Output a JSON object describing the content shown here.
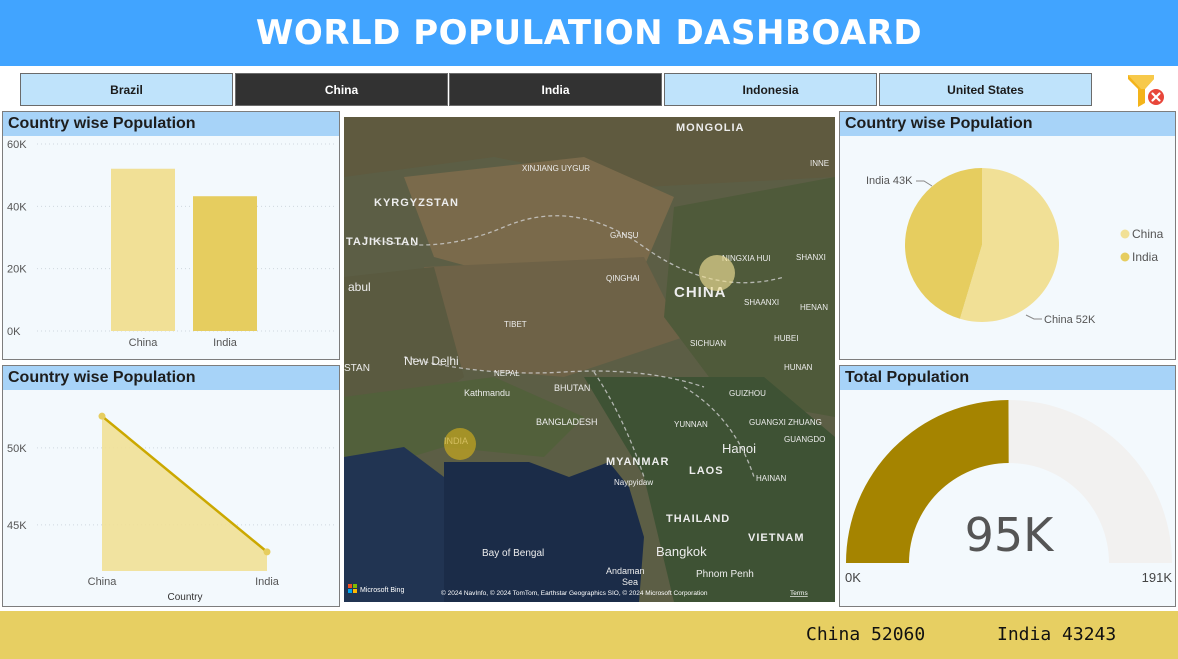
{
  "header": {
    "title": "WORLD POPULATION DASHBOARD"
  },
  "slicers": [
    {
      "label": "Brazil",
      "selected": false
    },
    {
      "label": "China",
      "selected": true
    },
    {
      "label": "India",
      "selected": true
    },
    {
      "label": "Indonesia",
      "selected": false
    },
    {
      "label": "United States",
      "selected": false
    }
  ],
  "filter_icon": {
    "icon": "clear-filter-icon"
  },
  "colors": {
    "header": "#41a4ff",
    "china": "#f1e096",
    "india": "#e6cd5f",
    "line": "#cba800",
    "gauge_fill": "#a58400",
    "gauge_track": "#f2f1f0",
    "footer": "#e7cf62"
  },
  "bar_panel": {
    "title": "Country wise Population"
  },
  "line_panel": {
    "title": "Country wise Population"
  },
  "pie_panel": {
    "title": "Country wise Population"
  },
  "gauge_panel": {
    "title": "Total Population"
  },
  "chart_data": [
    {
      "type": "bar",
      "title": "Country wise Population",
      "categories": [
        "China",
        "India"
      ],
      "values": [
        52060,
        43243
      ],
      "yticks": [
        "0K",
        "20K",
        "40K",
        "60K"
      ],
      "ylim": [
        0,
        60000
      ],
      "grid": true
    },
    {
      "type": "area",
      "title": "Country wise Population",
      "categories": [
        "China",
        "India"
      ],
      "values": [
        52060,
        43243
      ],
      "xlabel": "Country",
      "yticks": [
        "45K",
        "50K"
      ],
      "ylim": [
        42000,
        53500
      ],
      "grid": true
    },
    {
      "type": "pie",
      "title": "Country wise Population",
      "labels": [
        "China",
        "India"
      ],
      "values": [
        52060,
        43243
      ],
      "data_labels": [
        "China 52K",
        "India 43K"
      ],
      "legend": "right"
    },
    {
      "type": "gauge",
      "title": "Total Population",
      "value": 95303,
      "min": 0,
      "max": 191000,
      "value_label": "95K",
      "min_label": "0K",
      "max_label": "191K"
    }
  ],
  "map": {
    "labels": [
      "MONGOLIA",
      "XINJIANG UYGUR",
      "KYRGYZSTAN",
      "TAJIKISTAN",
      "abul",
      "GANSU",
      "NINGXIA HUI",
      "QINGHAI",
      "SHANXI",
      "CHINA",
      "SHAANXI",
      "HENAN",
      "TIBET",
      "SICHUAN",
      "HUBEI",
      "New Delhi",
      "NEPAL",
      "Kathmandu",
      "BHUTAN",
      "BANGLADESH",
      "YUNNAN",
      "GUIZHOU",
      "HUNAN",
      "GUANGXI ZHUANG",
      "GUANGDO",
      "INDIA",
      "MYANMAR",
      "Naypyidaw",
      "LAOS",
      "Hanoi",
      "HAINAN",
      "THAILAND",
      "VIETNAM",
      "Bangkok",
      "Bay of Bengal",
      "Andaman",
      "Sea",
      "Phnom Penh",
      "STAN",
      "INNE"
    ],
    "bubbles": [
      "China",
      "India"
    ],
    "logo": "Microsoft Bing",
    "attribution": "© 2024 NavInfo, © 2024 TomTom, Earthstar Geographics SIO, © 2024 Microsoft Corporation",
    "terms": "Terms"
  },
  "footer": {
    "items": [
      {
        "label": "China",
        "value": "52060"
      },
      {
        "label": "India",
        "value": "43243"
      }
    ]
  }
}
